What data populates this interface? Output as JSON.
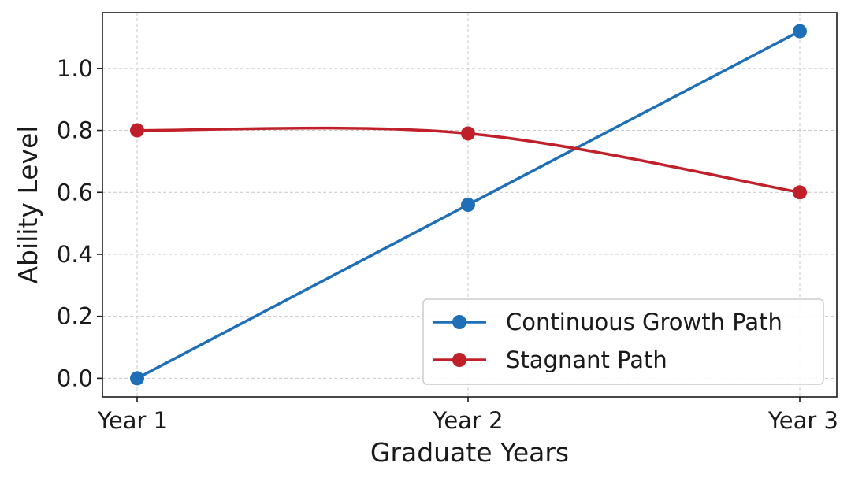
{
  "chart_data": {
    "type": "line",
    "title": "",
    "xlabel": "Graduate Years",
    "ylabel": "Ability Level",
    "categories": [
      "Year 1",
      "Year 2",
      "Year 3"
    ],
    "ylim": [
      -0.06,
      1.18
    ],
    "yticks": [
      0.0,
      0.2,
      0.4,
      0.6,
      0.8,
      1.0
    ],
    "ytick_labels": [
      "0.0",
      "0.2",
      "0.4",
      "0.6",
      "0.8",
      "1.0"
    ],
    "grid": true,
    "legend_position": "lower-right",
    "series": [
      {
        "name": "Continuous Growth Path",
        "values": [
          0.0,
          0.56,
          1.12
        ],
        "color": "#1f6fb8",
        "smooth": false
      },
      {
        "name": "Stagnant Path",
        "values": [
          0.8,
          0.79,
          0.6
        ],
        "color": "#c0202a",
        "smooth": true
      }
    ]
  }
}
